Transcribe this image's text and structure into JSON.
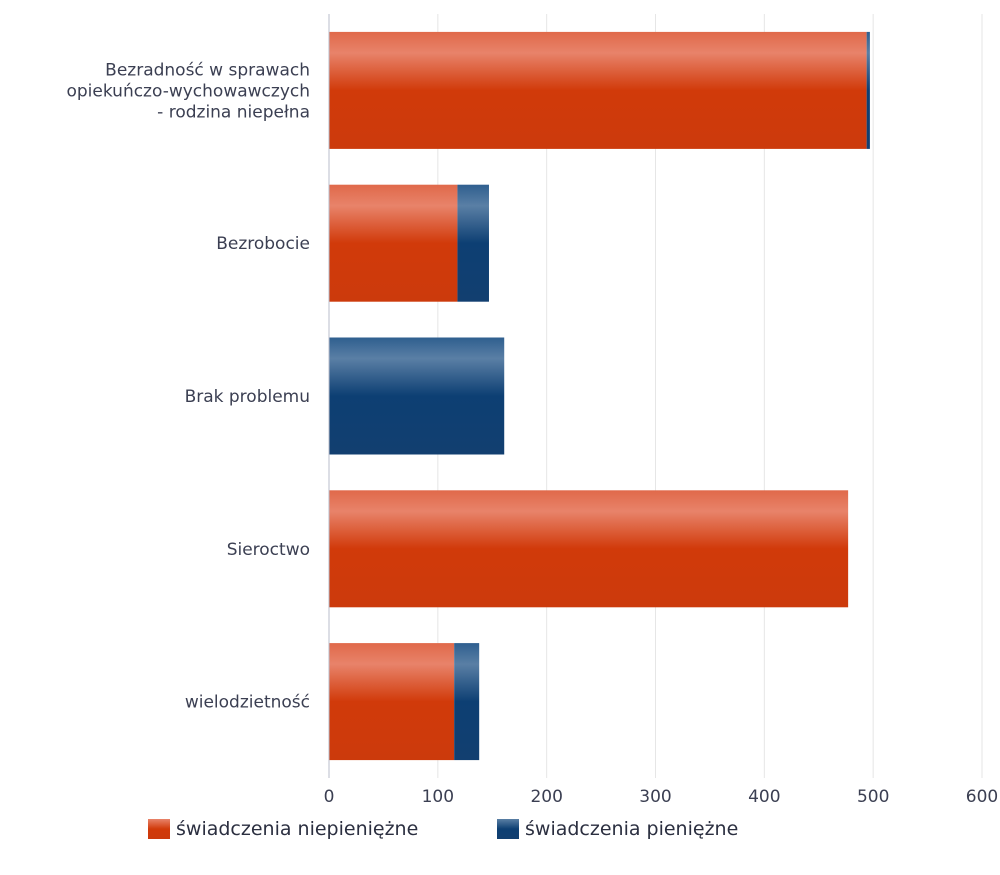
{
  "chart_data": {
    "type": "bar",
    "orientation": "horizontal",
    "stacked": true,
    "categories": [
      [
        "Bezradność w sprawach",
        "opiekuńczo-wychowawczych",
        " - rodzina niepełna"
      ],
      [
        "Bezrobocie"
      ],
      [
        "Brak problemu"
      ],
      [
        "Sieroctwo"
      ],
      [
        "wielodzietność"
      ]
    ],
    "series": [
      {
        "name": "świadczenia niepieniężne",
        "color": "#d13a0a",
        "values": [
          494,
          118,
          0,
          477,
          115
        ]
      },
      {
        "name": "świadczenia pieniężne",
        "color": "#0d3f73",
        "values": [
          3,
          29,
          161,
          0,
          23
        ]
      }
    ],
    "xlim": [
      0,
      600
    ],
    "xticks": [
      "0",
      "100",
      "200",
      "300",
      "400",
      "500",
      "600"
    ],
    "grid": "vertical",
    "legend": "bottom"
  }
}
